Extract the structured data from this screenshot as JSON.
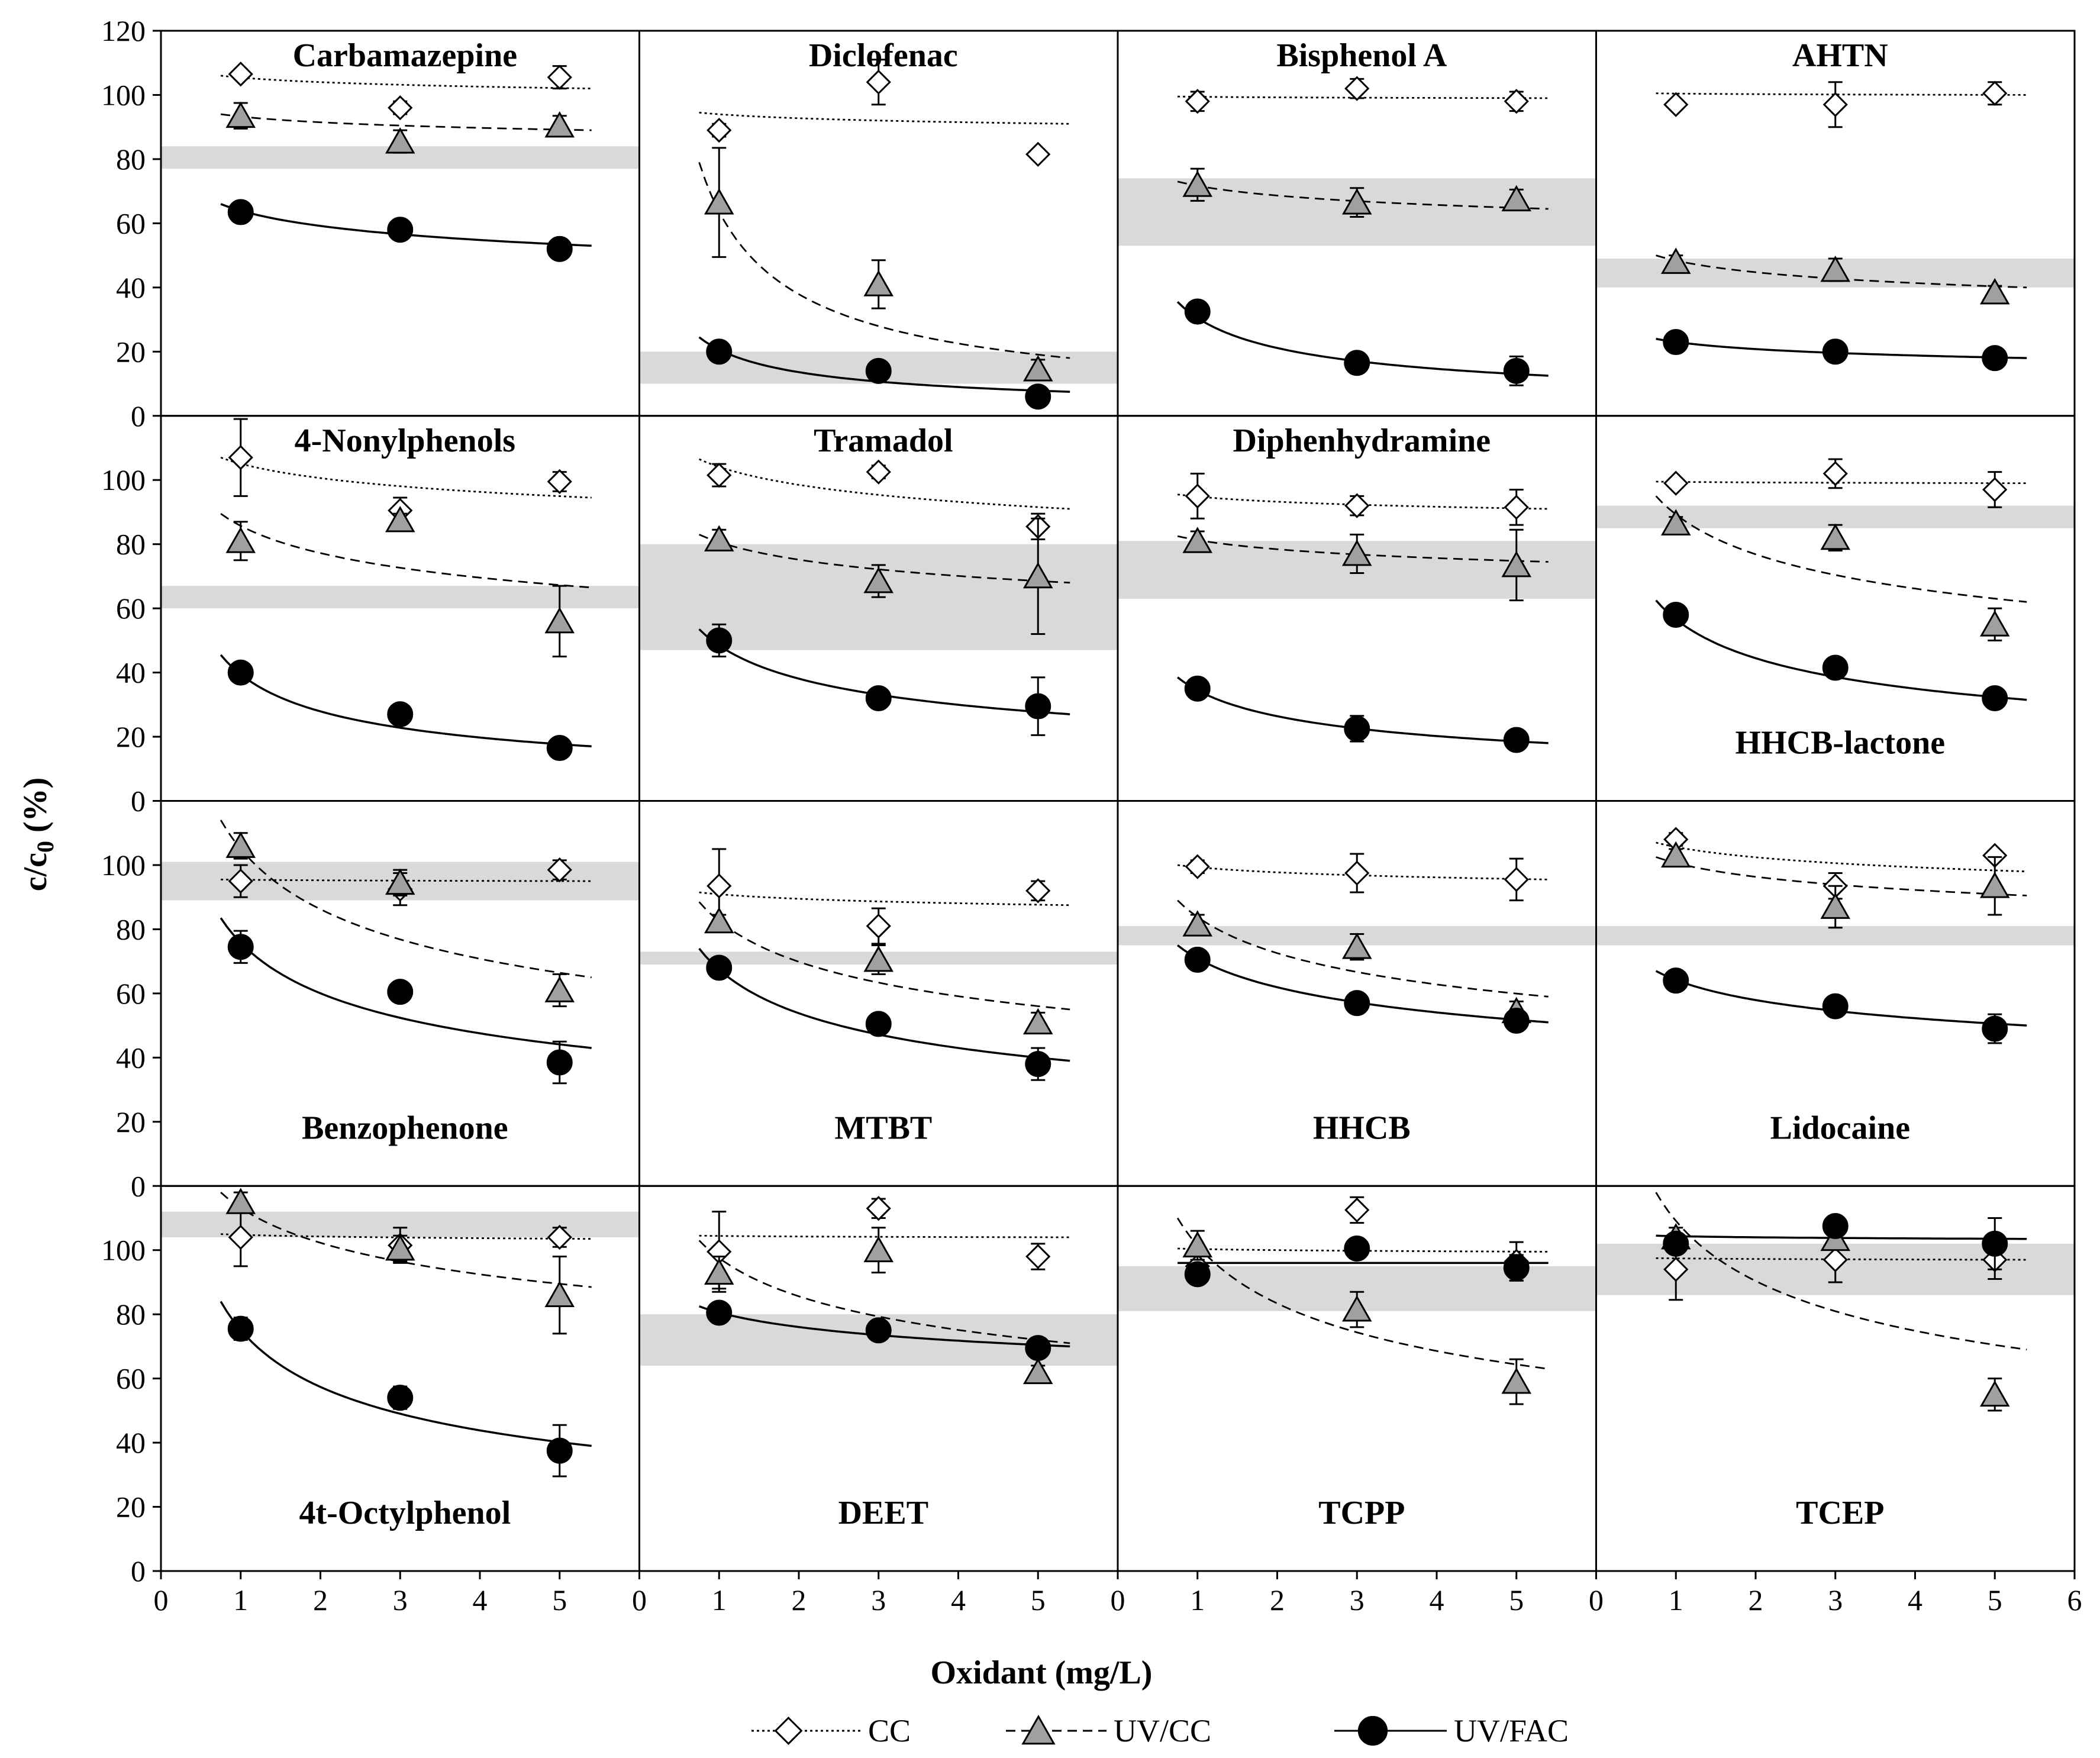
{
  "chart_data": {
    "type": "scatter",
    "grid": false,
    "layout_grid": "4x4",
    "xlabel": "Oxidant (mg/L)",
    "ylabel": "c/c0 (%)",
    "xlim": [
      0,
      6
    ],
    "ylim": [
      0,
      120
    ],
    "x_ticks_per_column": [
      [
        "0",
        "1",
        "2",
        "3",
        "4",
        "5"
      ],
      [
        "0",
        "1",
        "2",
        "3",
        "4",
        "5"
      ],
      [
        "0",
        "1",
        "2",
        "3",
        "4",
        "5"
      ],
      [
        "0",
        "1",
        "2",
        "3",
        "4",
        "5",
        "6"
      ]
    ],
    "y_ticks_top_row": [
      "0",
      "20",
      "40",
      "60",
      "80",
      "100",
      "120"
    ],
    "y_ticks_other_rows": [
      "0",
      "20",
      "40",
      "60",
      "80",
      "100"
    ],
    "legend_position": "bottom",
    "legend": [
      {
        "key": "CC",
        "label": "CC",
        "marker": "diamond",
        "fill": "#ffffff",
        "dash": "dotted"
      },
      {
        "key": "UVCC",
        "label": "UV/CC",
        "marker": "triangle",
        "fill": "#a0a0a0",
        "dash": "dashed"
      },
      {
        "key": "UVFAC",
        "label": "UV/FAC",
        "marker": "circle",
        "fill": "#000000",
        "dash": "solid"
      }
    ],
    "colors": {
      "band": "#d9d9d9",
      "triangle": "#a0a0a0",
      "circle": "#000000",
      "diamond": "#ffffff"
    },
    "x": [
      1,
      3,
      5
    ],
    "fit_x_range": [
      0.75,
      5.4
    ],
    "panels": [
      {
        "name": "Carbamazepine",
        "title_pos": "top",
        "band": [
          77,
          84
        ],
        "series": {
          "CC": {
            "y": [
              106.5,
              96,
              105.5
            ],
            "err": [
              1.5,
              2,
              3.5
            ],
            "fit": [
              106,
              102
            ]
          },
          "UVCC": {
            "y": [
              93.5,
              85.5,
              90.5
            ],
            "err": [
              4,
              3.5,
              3
            ],
            "fit": [
              94,
              89
            ]
          },
          "UVFAC": {
            "y": [
              63.5,
              58,
              52
            ],
            "err": [
              1,
              1.5,
              1.5
            ],
            "fit": [
              66,
              53
            ]
          }
        }
      },
      {
        "name": "Diclofenac",
        "title_pos": "top",
        "band": [
          10,
          20
        ],
        "series": {
          "CC": {
            "y": [
              89,
              104,
              81.5
            ],
            "err": [
              2,
              7,
              1.5
            ],
            "fit": [
              94.5,
              91
            ]
          },
          "UVCC": {
            "y": [
              66.5,
              41,
              14.5
            ],
            "err": [
              17,
              7.5,
              3
            ],
            "fit": [
              79,
              18
            ]
          },
          "UVFAC": {
            "y": [
              20,
              14,
              6
            ],
            "err": [
              2,
              1.5,
              1
            ],
            "fit": [
              24.5,
              7.5
            ]
          }
        }
      },
      {
        "name": "Bisphenol A",
        "title_pos": "top",
        "band": [
          53,
          74
        ],
        "series": {
          "CC": {
            "y": [
              98,
              102,
              98
            ],
            "err": [
              3,
              3,
              3
            ],
            "fit": [
              99.5,
              99
            ]
          },
          "UVCC": {
            "y": [
              72,
              66.5,
              67.5
            ],
            "err": [
              5,
              4.5,
              3
            ],
            "fit": [
              73,
              64.5
            ]
          },
          "UVFAC": {
            "y": [
              32.5,
              16.5,
              14
            ],
            "err": [
              2,
              2.5,
              4.5
            ],
            "fit": [
              35.5,
              12.5
            ]
          }
        }
      },
      {
        "name": "AHTN",
        "title_pos": "top",
        "band": [
          40,
          49
        ],
        "series": {
          "CC": {
            "y": [
              97,
              97,
              100.5
            ],
            "err": [
              1.5,
              7,
              3.5
            ],
            "fit": [
              100.5,
              100
            ]
          },
          "UVCC": {
            "y": [
              48,
              45.5,
              38.5
            ],
            "err": [
              2,
              3.5,
              2
            ],
            "fit": [
              50,
              40
            ]
          },
          "UVFAC": {
            "y": [
              23,
              20,
              18
            ],
            "err": [
              1.5,
              1.5,
              3
            ],
            "fit": [
              24,
              18
            ]
          }
        }
      },
      {
        "name": "4-Nonylphenols",
        "title_pos": "top",
        "band": [
          60,
          67
        ],
        "series": {
          "CC": {
            "y": [
              107,
              90.5,
              99.5
            ],
            "err": [
              12,
              4,
              3
            ],
            "fit": [
              107,
              94.5
            ]
          },
          "UVCC": {
            "y": [
              81,
              87.5,
              56
            ],
            "err": [
              6,
              2,
              11
            ],
            "fit": [
              89.5,
              66.5
            ]
          },
          "UVFAC": {
            "y": [
              40,
              27,
              16.5
            ],
            "err": [
              1.5,
              1.5,
              1.5
            ],
            "fit": [
              45.5,
              17
            ]
          }
        }
      },
      {
        "name": "Tramadol",
        "title_pos": "top",
        "band": [
          47,
          80
        ],
        "series": {
          "CC": {
            "y": [
              101.5,
              102.5,
              85.5
            ],
            "err": [
              3.5,
              2,
              4
            ],
            "fit": [
              106.5,
              91
            ]
          },
          "UVCC": {
            "y": [
              81.5,
              68.5,
              70
            ],
            "err": [
              3,
              5,
              18
            ],
            "fit": [
              83,
              68
            ]
          },
          "UVFAC": {
            "y": [
              50,
              32,
              29.5
            ],
            "err": [
              5,
              2,
              9
            ],
            "fit": [
              53.5,
              27
            ]
          }
        }
      },
      {
        "name": "Diphenhydramine",
        "title_pos": "top",
        "band": [
          63,
          81
        ],
        "series": {
          "CC": {
            "y": [
              95,
              92,
              91.5
            ],
            "err": [
              7,
              3,
              5.5
            ],
            "fit": [
              95.5,
              91
            ]
          },
          "UVCC": {
            "y": [
              81,
              77,
              73.5
            ],
            "err": [
              3,
              6,
              11
            ],
            "fit": [
              82.5,
              74.5
            ]
          },
          "UVFAC": {
            "y": [
              35,
              22.5,
              19
            ],
            "err": [
              1.5,
              4,
              1
            ],
            "fit": [
              38.5,
              18
            ]
          }
        }
      },
      {
        "name": "HHCB-lactone",
        "title_pos": "bottom",
        "band": [
          85,
          92
        ],
        "series": {
          "CC": {
            "y": [
              99,
              102,
              97
            ],
            "err": [
              1.5,
              4.5,
              5.5
            ],
            "fit": [
              99.5,
              99
            ]
          },
          "UVCC": {
            "y": [
              86.5,
              82,
              55
            ],
            "err": [
              2,
              4,
              5
            ],
            "fit": [
              95,
              62
            ]
          },
          "UVFAC": {
            "y": [
              58,
              41.5,
              32
            ],
            "err": [
              1.5,
              3,
              1
            ],
            "fit": [
              62.5,
              31.5
            ]
          }
        }
      },
      {
        "name": "Benzophenone",
        "title_pos": "bottom",
        "band": [
          89,
          101
        ],
        "series": {
          "CC": {
            "y": [
              95,
              92.5,
              98.5
            ],
            "err": [
              5,
              5,
              3
            ],
            "fit": [
              95.5,
              95
            ]
          },
          "UVCC": {
            "y": [
              106,
              94.5,
              61
            ],
            "err": [
              4,
              4,
              5
            ],
            "fit": [
              114,
              65
            ]
          },
          "UVFAC": {
            "y": [
              74.5,
              60.5,
              38.5
            ],
            "err": [
              5,
              1,
              6.5
            ],
            "fit": [
              83.5,
              43
            ]
          }
        }
      },
      {
        "name": "MTBT",
        "title_pos": "bottom",
        "band": [
          69,
          73
        ],
        "series": {
          "CC": {
            "y": [
              93.5,
              81,
              92
            ],
            "err": [
              11.5,
              5.5,
              3
            ],
            "fit": [
              91.5,
              87.5
            ]
          },
          "UVCC": {
            "y": [
              82.5,
              70.5,
              51
            ],
            "err": [
              2,
              4.5,
              3
            ],
            "fit": [
              88.5,
              55
            ]
          },
          "UVFAC": {
            "y": [
              68,
              50.5,
              38
            ],
            "err": [
              1.5,
              1.5,
              5
            ],
            "fit": [
              74,
              39
            ]
          }
        }
      },
      {
        "name": "HHCB",
        "title_pos": "bottom",
        "band": [
          75,
          81
        ],
        "series": {
          "CC": {
            "y": [
              99.5,
              97.5,
              95.5
            ],
            "err": [
              2,
              6,
              6.5
            ],
            "fit": [
              100,
              95.5
            ]
          },
          "UVCC": {
            "y": [
              81.5,
              74.5,
              54.5
            ],
            "err": [
              3,
              4,
              3
            ],
            "fit": [
              89,
              59
            ]
          },
          "UVFAC": {
            "y": [
              70.5,
              57,
              51.5
            ],
            "err": [
              1,
              1.5,
              2
            ],
            "fit": [
              75,
              51
            ]
          }
        }
      },
      {
        "name": "Lidocaine",
        "title_pos": "bottom",
        "band": [
          75,
          81
        ],
        "series": {
          "CC": {
            "y": [
              108,
              93.5,
              103
            ],
            "err": [
              2,
              4,
              1.5
            ],
            "fit": [
              107,
              98
            ]
          },
          "UVCC": {
            "y": [
              103,
              87,
              93.5
            ],
            "err": [
              2,
              6.5,
              9
            ],
            "fit": [
              102.5,
              90.5
            ]
          },
          "UVFAC": {
            "y": [
              64,
              56,
              49
            ],
            "err": [
              1,
              1,
              4.5
            ],
            "fit": [
              67,
              50
            ]
          }
        }
      },
      {
        "name": "4t-Octylphenol",
        "title_pos": "bottom",
        "band": [
          104,
          112
        ],
        "series": {
          "CC": {
            "y": [
              104,
              101.5,
              104
            ],
            "err": [
              9,
              5.5,
              3
            ],
            "fit": [
              105,
              103.5
            ]
          },
          "UVCC": {
            "y": [
              115,
              100.5,
              86
            ],
            "err": [
              3,
              4,
              12
            ],
            "fit": [
              118,
              88.5
            ]
          },
          "UVFAC": {
            "y": [
              75.5,
              54,
              37.5
            ],
            "err": [
              3.5,
              3.5,
              8
            ],
            "fit": [
              84,
              39
            ]
          }
        }
      },
      {
        "name": "DEET",
        "title_pos": "bottom",
        "band": [
          64,
          80
        ],
        "series": {
          "CC": {
            "y": [
              99.5,
              113,
              98
            ],
            "err": [
              12.5,
              3,
              4
            ],
            "fit": [
              104.5,
              104
            ]
          },
          "UVCC": {
            "y": [
              93,
              100,
              62
            ],
            "err": [
              5,
              7,
              2
            ],
            "fit": [
              103,
              71
            ]
          },
          "UVFAC": {
            "y": [
              80.5,
              75,
              69.5
            ],
            "err": [
              1.5,
              3,
              3
            ],
            "fit": [
              82.5,
              70
            ]
          }
        }
      },
      {
        "name": "TCPP",
        "title_pos": "bottom",
        "band": [
          81,
          95
        ],
        "series": {
          "CC": {
            "y": [
              95,
              112.5,
              96.5
            ],
            "err": [
              2,
              4,
              6
            ],
            "fit": [
              100.5,
              99.5
            ]
          },
          "UVCC": {
            "y": [
              101.5,
              81.5,
              59
            ],
            "err": [
              4.5,
              5.5,
              7
            ],
            "fit": [
              110,
              63
            ]
          },
          "UVFAC": {
            "y": [
              92.5,
              100.5,
              94.5
            ],
            "err": [
              2,
              1.5,
              4
            ],
            "fit": [
              96,
              96
            ]
          }
        }
      },
      {
        "name": "TCEP",
        "title_pos": "bottom",
        "band": [
          86,
          102
        ],
        "series": {
          "CC": {
            "y": [
              94,
              97,
              97
            ],
            "err": [
              9.5,
              7,
              6
            ],
            "fit": [
              97.5,
              97
            ]
          },
          "UVCC": {
            "y": [
              104,
              103.5,
              55
            ],
            "err": [
              3,
              3,
              5
            ],
            "fit": [
              118,
              69
            ]
          },
          "UVFAC": {
            "y": [
              102,
              107.5,
              102
            ],
            "err": [
              3,
              2,
              8
            ],
            "fit": [
              104.5,
              103.5
            ]
          }
        }
      }
    ]
  }
}
